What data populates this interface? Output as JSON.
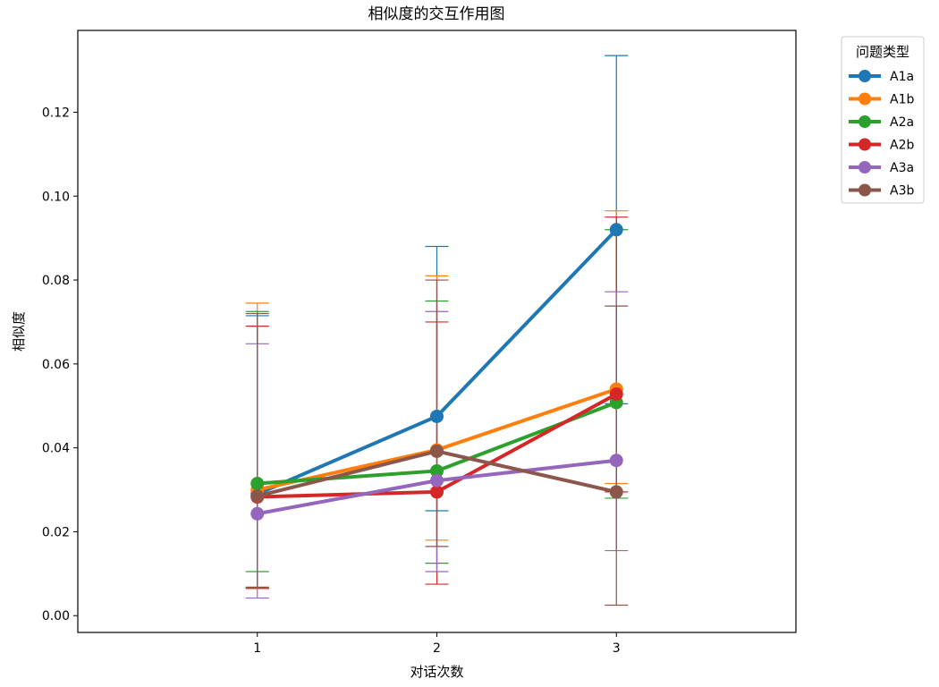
{
  "chart_data": {
    "type": "line",
    "title": "相似度的交互作用图",
    "xlabel": "对话次数",
    "ylabel": "相似度",
    "categories": [
      "1",
      "2",
      "3"
    ],
    "ylim": [
      -0.004,
      0.1395
    ],
    "yticks": [
      0.0,
      0.02,
      0.04,
      0.06,
      0.08,
      0.1,
      0.12
    ],
    "ytick_labels": [
      "0.00",
      "0.02",
      "0.04",
      "0.06",
      "0.08",
      "0.10",
      "0.12"
    ],
    "grid": false,
    "legend": {
      "title": "问题类型",
      "placement": "outside-top-right"
    },
    "series": [
      {
        "name": "A1a",
        "color": "#1f77b4",
        "values": [
          0.029,
          0.0475,
          0.092
        ],
        "err_low": [
          0.0065,
          0.025,
          0.0505
        ],
        "err_high": [
          0.0715,
          0.088,
          0.1335
        ]
      },
      {
        "name": "A1b",
        "color": "#ff7f0e",
        "values": [
          0.03,
          0.0395,
          0.054
        ],
        "err_low": [
          0.0065,
          0.018,
          0.0315
        ],
        "err_high": [
          0.0745,
          0.081,
          0.0965
        ]
      },
      {
        "name": "A2a",
        "color": "#2ca02c",
        "values": [
          0.0315,
          0.0345,
          0.0508
        ],
        "err_low": [
          0.0105,
          0.0125,
          0.028
        ],
        "err_high": [
          0.0725,
          0.075,
          0.092
        ]
      },
      {
        "name": "A2b",
        "color": "#d62728",
        "values": [
          0.0283,
          0.0295,
          0.0528
        ],
        "err_low": [
          0.0065,
          0.0075,
          0.0295
        ],
        "err_high": [
          0.069,
          0.07,
          0.095
        ]
      },
      {
        "name": "A3a",
        "color": "#9467bd",
        "values": [
          0.0243,
          0.0322,
          0.037
        ],
        "err_low": [
          0.0042,
          0.0105,
          0.0155
        ],
        "err_high": [
          0.0648,
          0.0725,
          0.0772
        ]
      },
      {
        "name": "A3b",
        "color": "#8c564b",
        "values": [
          0.0285,
          0.0392,
          0.0295
        ],
        "err_low": [
          0.0068,
          0.0165,
          0.0025
        ],
        "err_high": [
          0.072,
          0.08,
          0.0738
        ]
      }
    ]
  }
}
